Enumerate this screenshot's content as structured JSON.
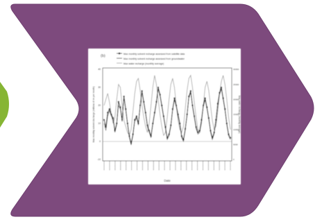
{
  "colors": {
    "chevron": "#7d4a7d",
    "chevron_edge": "#6f3f70",
    "green_tab": "#86b534",
    "figure_bg": "#ffffff",
    "series_dark": "#111111",
    "series_gray": "#9a9a9a"
  },
  "figure": {
    "panel_label": "(b)",
    "legend": [
      "Max monthly solvent recharge assessed from satellite data",
      "Max monthly solvent recharge assessed from groundwater",
      "Max water recharge (monthly average)"
    ],
    "xlabel": "Date",
    "ylabel_left": "Max monthly solvent discharge (millions of m³ per month)",
    "ylabel_right": "Max water recharge (monthly average)"
  },
  "chart_data": {
    "type": "line",
    "ylim": [
      -10,
      40
    ],
    "ylim_right": [
      0,
      30000
    ],
    "y_ticks": [
      "-10",
      "0",
      "10",
      "20",
      "30",
      "40"
    ],
    "y_ticks_right": [
      "0",
      "5000",
      "10000",
      "15000",
      "20000",
      "25000",
      "30000"
    ],
    "series": [
      {
        "values": [
          12,
          8,
          16,
          18,
          15,
          13,
          6,
          10,
          22,
          19,
          12,
          25,
          18,
          10,
          3,
          -1,
          4,
          12,
          14,
          10,
          20,
          28,
          22,
          16,
          9,
          6,
          3,
          10,
          16,
          22,
          30,
          26,
          20,
          14,
          8,
          2,
          4,
          9,
          18,
          24,
          20,
          15,
          10,
          3,
          1,
          7,
          15,
          25,
          28,
          20,
          14,
          8,
          5,
          6,
          12,
          20,
          24,
          19,
          13,
          6,
          2,
          5,
          12,
          21,
          27,
          30,
          24,
          18,
          10,
          4,
          2
        ]
      },
      {
        "values": [
          10,
          6,
          14,
          17,
          14,
          12,
          5,
          9,
          20,
          18,
          11,
          24,
          17,
          9,
          2,
          -2,
          3,
          11,
          13,
          9,
          19,
          27,
          21,
          15,
          8,
          5,
          2,
          9,
          15,
          21,
          29,
          25,
          19,
          13,
          7,
          1,
          3,
          8,
          17,
          23,
          19,
          14,
          9,
          2,
          0,
          6,
          14,
          24,
          27,
          19,
          13,
          7,
          4,
          5,
          11,
          19,
          23,
          18,
          12,
          5,
          1,
          4,
          11,
          20,
          26,
          29,
          23,
          17,
          9,
          3,
          1
        ]
      },
      {
        "values": [
          18000,
          20000,
          22000,
          19000,
          15000,
          12000,
          14000,
          20000,
          25000,
          24000,
          18000,
          13000,
          11000,
          9000,
          8000,
          10000,
          16000,
          22000,
          26000,
          27000,
          23000,
          18000,
          14000,
          11000,
          9000,
          12000,
          18000,
          24000,
          28000,
          25000,
          20000,
          15000,
          11000,
          8000,
          9000,
          14000,
          20000,
          25000,
          27000,
          24000,
          18000,
          13000,
          10000,
          9000,
          11000,
          17000,
          23000,
          27000,
          28000,
          24000,
          19000,
          14000,
          10000,
          9000,
          12000,
          18000,
          24000,
          26000,
          23000,
          18000,
          13000,
          10000,
          11000,
          16000,
          22000,
          26000,
          28000,
          25000,
          20000,
          14000,
          10000
        ]
      }
    ]
  }
}
